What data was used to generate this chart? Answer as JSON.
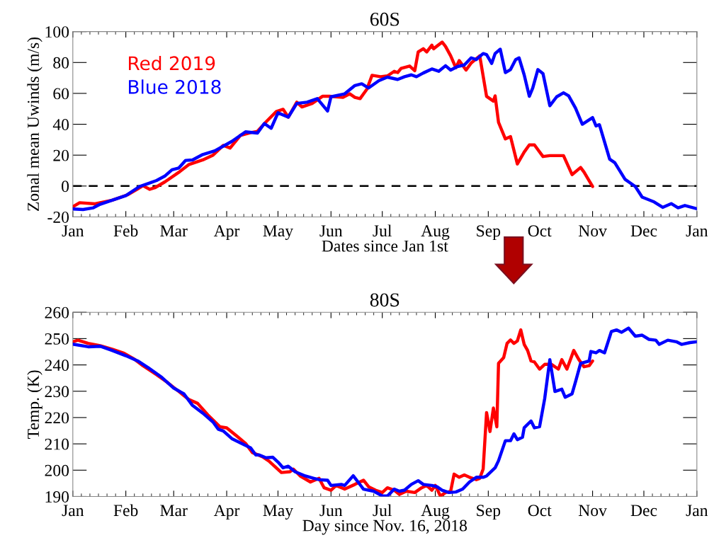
{
  "chart_data": [
    {
      "type": "line",
      "title": "60S",
      "xlabel": "Dates since Jan 1st",
      "ylabel": "Zonal mean Uwinds (m/s)",
      "xlim": [
        "2019-01-01",
        "2020-01-01"
      ],
      "ylim": [
        -20,
        100
      ],
      "xticks": [
        {
          "value": "2019-01-01",
          "label": "Jan"
        },
        {
          "value": "2019-02-01",
          "label": "Feb"
        },
        {
          "value": "2019-03-01",
          "label": "Mar"
        },
        {
          "value": "2019-04-01",
          "label": "Apr"
        },
        {
          "value": "2019-05-01",
          "label": "May"
        },
        {
          "value": "2019-06-01",
          "label": "Jun"
        },
        {
          "value": "2019-07-01",
          "label": "Jul"
        },
        {
          "value": "2019-08-01",
          "label": "Aug"
        },
        {
          "value": "2019-09-01",
          "label": "Sep"
        },
        {
          "value": "2019-10-01",
          "label": "Oct"
        },
        {
          "value": "2019-11-01",
          "label": "Nov"
        },
        {
          "value": "2019-12-01",
          "label": "Dec"
        },
        {
          "value": "2020-01-01",
          "label": "Jan"
        }
      ],
      "yticks": [
        -20,
        0,
        20,
        40,
        60,
        80,
        100
      ],
      "grid": false,
      "legend": "top left",
      "line_style": "solid",
      "ref_lines": [
        {
          "axis": "y",
          "value": 0,
          "color": "#000000",
          "line_style": "dashed"
        }
      ],
      "series": [
        {
          "name": "Red 2019",
          "color": "#ff0000",
          "x": [
            "2019-01-01",
            "2019-01-05",
            "2019-01-14",
            "2019-01-24",
            "2019-02-02",
            "2019-02-08",
            "2019-02-11",
            "2019-02-15",
            "2019-02-18",
            "2019-02-24",
            "2019-03-04",
            "2019-03-10",
            "2019-03-18",
            "2019-03-24",
            "2019-03-30",
            "2019-04-03",
            "2019-04-09",
            "2019-04-15",
            "2019-04-19",
            "2019-04-24",
            "2019-04-30",
            "2019-05-04",
            "2019-05-07",
            "2019-05-12",
            "2019-05-15",
            "2019-05-21",
            "2019-05-27",
            "2019-05-31",
            "2019-06-08",
            "2019-06-12",
            "2019-06-15",
            "2019-06-18",
            "2019-06-22",
            "2019-06-25",
            "2019-06-30",
            "2019-07-04",
            "2019-07-08",
            "2019-07-10",
            "2019-07-12",
            "2019-07-17",
            "2019-07-20",
            "2019-07-22",
            "2019-07-25",
            "2019-07-27",
            "2019-07-30",
            "2019-07-31",
            "2019-08-05",
            "2019-08-07",
            "2019-08-10",
            "2019-08-13",
            "2019-08-15",
            "2019-08-19",
            "2019-08-22",
            "2019-08-27",
            "2019-08-31",
            "2019-09-04",
            "2019-09-05",
            "2019-09-07",
            "2019-09-11",
            "2019-09-14",
            "2019-09-18",
            "2019-09-22",
            "2019-09-25",
            "2019-09-28",
            "2019-10-03",
            "2019-10-07",
            "2019-10-11",
            "2019-10-15",
            "2019-10-20",
            "2019-10-25",
            "2019-10-27",
            "2019-11-01"
          ],
          "values": [
            -13.4,
            -10.8,
            -11.5,
            -9.2,
            -5.7,
            -1.8,
            0.2,
            -2.1,
            -1.1,
            2.8,
            8.9,
            14.0,
            16.9,
            20.0,
            26.3,
            24.6,
            32.8,
            34.6,
            35.4,
            41.5,
            48.2,
            49.7,
            44.6,
            54.3,
            51.2,
            53.5,
            58.1,
            58.1,
            57.4,
            59.7,
            57.4,
            56.6,
            62.7,
            71.7,
            70.8,
            71.3,
            74.3,
            73.5,
            76.2,
            77.7,
            74.7,
            86.8,
            88.9,
            86.8,
            91.2,
            88.9,
            93.2,
            90.4,
            84.3,
            76.6,
            81.2,
            75.1,
            79.7,
            84.3,
            58.1,
            55.0,
            58.4,
            41.2,
            30.5,
            32.0,
            14.3,
            22.0,
            26.6,
            26.6,
            19.1,
            19.7,
            19.7,
            19.7,
            7.4,
            12.0,
            9.0,
            -0.3
          ]
        },
        {
          "name": "Blue 2018",
          "color": "#0000ff",
          "x": [
            "2019-01-01",
            "2019-01-07",
            "2019-01-13",
            "2019-01-17",
            "2019-01-24",
            "2019-02-01",
            "2019-02-09",
            "2019-02-14",
            "2019-02-19",
            "2019-02-24",
            "2019-02-28",
            "2019-03-04",
            "2019-03-08",
            "2019-03-12",
            "2019-03-18",
            "2019-03-25",
            "2019-03-30",
            "2019-04-04",
            "2019-04-12",
            "2019-04-19",
            "2019-04-23",
            "2019-04-27",
            "2019-05-01",
            "2019-05-07",
            "2019-05-12",
            "2019-05-18",
            "2019-05-24",
            "2019-05-30",
            "2019-06-01",
            "2019-06-09",
            "2019-06-15",
            "2019-06-19",
            "2019-06-23",
            "2019-06-29",
            "2019-07-04",
            "2019-07-10",
            "2019-07-14",
            "2019-07-18",
            "2019-07-21",
            "2019-07-25",
            "2019-07-30",
            "2019-08-03",
            "2019-08-07",
            "2019-08-10",
            "2019-08-14",
            "2019-08-18",
            "2019-08-22",
            "2019-08-25",
            "2019-08-29",
            "2019-08-31",
            "2019-09-03",
            "2019-09-05",
            "2019-09-08",
            "2019-09-11",
            "2019-09-14",
            "2019-09-17",
            "2019-09-19",
            "2019-09-22",
            "2019-09-25",
            "2019-09-27",
            "2019-09-30",
            "2019-10-03",
            "2019-10-07",
            "2019-10-11",
            "2019-10-15",
            "2019-10-18",
            "2019-10-22",
            "2019-10-26",
            "2019-11-01",
            "2019-11-03",
            "2019-11-05",
            "2019-11-11",
            "2019-11-14",
            "2019-11-20",
            "2019-11-26",
            "2019-11-30",
            "2019-12-07",
            "2019-12-12",
            "2019-12-17",
            "2019-12-21",
            "2019-12-25",
            "2020-01-01"
          ],
          "values": [
            -14.9,
            -15.2,
            -14.1,
            -11.8,
            -9.2,
            -6.2,
            -0.3,
            1.6,
            3.6,
            6.6,
            10.5,
            11.7,
            16.6,
            16.9,
            20.4,
            22.8,
            25.8,
            28.9,
            35.1,
            34.3,
            40.5,
            37.4,
            47.4,
            44.6,
            53.5,
            54.3,
            56.6,
            48.6,
            57.8,
            59.7,
            65.1,
            66.2,
            63.5,
            68.2,
            70.5,
            69.0,
            70.8,
            72.0,
            70.8,
            73.2,
            75.8,
            74.3,
            77.9,
            75.1,
            77.4,
            78.4,
            83.0,
            81.9,
            85.8,
            85.1,
            79.4,
            85.8,
            88.6,
            73.5,
            75.4,
            81.9,
            83.0,
            72.0,
            58.1,
            63.5,
            75.4,
            72.8,
            52.0,
            57.8,
            60.4,
            58.4,
            50.5,
            40.0,
            44.3,
            38.9,
            39.7,
            17.4,
            15.1,
            4.3,
            -0.3,
            -7.2,
            -10.3,
            -13.8,
            -11.4,
            -14.1,
            -12.6,
            -14.7
          ]
        }
      ]
    },
    {
      "type": "line",
      "title": "80S",
      "xlabel": "Day since Nov. 16, 2018",
      "ylabel": "Temp. (K)",
      "xlim": [
        "2019-01-01",
        "2020-01-01"
      ],
      "ylim": [
        190,
        260
      ],
      "xticks": [
        {
          "value": "2019-01-01",
          "label": "Jan"
        },
        {
          "value": "2019-02-01",
          "label": "Feb"
        },
        {
          "value": "2019-03-01",
          "label": "Mar"
        },
        {
          "value": "2019-04-01",
          "label": "Apr"
        },
        {
          "value": "2019-05-01",
          "label": "May"
        },
        {
          "value": "2019-06-01",
          "label": "Jun"
        },
        {
          "value": "2019-07-01",
          "label": "Jul"
        },
        {
          "value": "2019-08-01",
          "label": "Aug"
        },
        {
          "value": "2019-09-01",
          "label": "Sep"
        },
        {
          "value": "2019-10-01",
          "label": "Oct"
        },
        {
          "value": "2019-11-01",
          "label": "Nov"
        },
        {
          "value": "2019-12-01",
          "label": "Dec"
        },
        {
          "value": "2020-01-01",
          "label": "Jan"
        }
      ],
      "yticks": [
        190,
        200,
        210,
        220,
        230,
        240,
        250,
        260
      ],
      "grid": false,
      "line_style": "solid",
      "series": [
        {
          "color": "#ff0000",
          "x": [
            "2019-01-01",
            "2019-01-04",
            "2019-01-10",
            "2019-01-17",
            "2019-01-24",
            "2019-01-31",
            "2019-02-06",
            "2019-02-11",
            "2019-02-19",
            "2019-02-25",
            "2019-03-04",
            "2019-03-10",
            "2019-03-15",
            "2019-03-21",
            "2019-03-28",
            "2019-04-01",
            "2019-04-07",
            "2019-04-12",
            "2019-04-16",
            "2019-04-22",
            "2019-04-26",
            "2019-05-03",
            "2019-05-08",
            "2019-05-10",
            "2019-05-14",
            "2019-05-20",
            "2019-05-25",
            "2019-05-28",
            "2019-06-01",
            "2019-06-04",
            "2019-06-09",
            "2019-06-15",
            "2019-06-20",
            "2019-06-23",
            "2019-06-27",
            "2019-07-01",
            "2019-07-04",
            "2019-07-08",
            "2019-07-11",
            "2019-07-15",
            "2019-07-20",
            "2019-07-24",
            "2019-07-27",
            "2019-07-30",
            "2019-08-01",
            "2019-08-04",
            "2019-08-07",
            "2019-08-10",
            "2019-08-12",
            "2019-08-15",
            "2019-08-18",
            "2019-08-21",
            "2019-08-25",
            "2019-08-27",
            "2019-08-29",
            "2019-08-31",
            "2019-09-02",
            "2019-09-04",
            "2019-09-06",
            "2019-09-07",
            "2019-09-10",
            "2019-09-12",
            "2019-09-14",
            "2019-09-16",
            "2019-09-18",
            "2019-09-20",
            "2019-09-22",
            "2019-09-24",
            "2019-09-26",
            "2019-09-28",
            "2019-10-01",
            "2019-10-04",
            "2019-10-08",
            "2019-10-12",
            "2019-10-14",
            "2019-10-17",
            "2019-10-21",
            "2019-10-24",
            "2019-10-27",
            "2019-10-30",
            "2019-11-01"
          ],
          "values": [
            248.8,
            249.4,
            248.2,
            247.3,
            246.0,
            244.4,
            242.2,
            239.7,
            236.3,
            233.5,
            229.9,
            226.8,
            225.4,
            221.0,
            216.5,
            216.1,
            212.9,
            210.2,
            206.7,
            205.1,
            203.3,
            199.1,
            199.4,
            200.4,
            197.8,
            195.5,
            196.9,
            193.3,
            192.4,
            194.2,
            192.8,
            194.6,
            196.2,
            193.7,
            192.4,
            191.5,
            193.3,
            192.4,
            190.8,
            192.0,
            191.5,
            193.3,
            194.2,
            192.4,
            194.2,
            190.2,
            191.5,
            192.0,
            198.5,
            197.3,
            198.2,
            197.3,
            196.4,
            196.9,
            200.4,
            221.9,
            214.7,
            223.6,
            216.5,
            240.6,
            242.8,
            248.2,
            249.5,
            248.2,
            249.1,
            253.3,
            247.8,
            245.5,
            241.5,
            241.1,
            238.4,
            240.2,
            240.2,
            238.4,
            242.0,
            238.4,
            245.5,
            242.0,
            239.3,
            239.7,
            241.5
          ]
        },
        {
          "color": "#0000ff",
          "x": [
            "2019-01-01",
            "2019-01-10",
            "2019-01-17",
            "2019-01-24",
            "2019-02-01",
            "2019-02-08",
            "2019-02-14",
            "2019-02-22",
            "2019-03-01",
            "2019-03-07",
            "2019-03-12",
            "2019-03-18",
            "2019-03-24",
            "2019-03-27",
            "2019-03-30",
            "2019-04-04",
            "2019-04-12",
            "2019-04-15",
            "2019-04-18",
            "2019-04-20",
            "2019-04-24",
            "2019-04-28",
            "2019-05-01",
            "2019-05-04",
            "2019-05-07",
            "2019-05-11",
            "2019-05-17",
            "2019-05-22",
            "2019-05-25",
            "2019-05-30",
            "2019-06-01",
            "2019-06-07",
            "2019-06-09",
            "2019-06-14",
            "2019-06-20",
            "2019-06-26",
            "2019-07-01",
            "2019-07-04",
            "2019-07-08",
            "2019-07-11",
            "2019-07-14",
            "2019-07-18",
            "2019-07-22",
            "2019-07-25",
            "2019-07-30",
            "2019-08-02",
            "2019-08-05",
            "2019-08-09",
            "2019-08-13",
            "2019-08-17",
            "2019-08-21",
            "2019-08-25",
            "2019-08-29",
            "2019-08-31",
            "2019-09-05",
            "2019-09-07",
            "2019-09-11",
            "2019-09-14",
            "2019-09-16",
            "2019-09-18",
            "2019-09-21",
            "2019-09-22",
            "2019-09-26",
            "2019-09-28",
            "2019-10-01",
            "2019-10-04",
            "2019-10-07",
            "2019-10-10",
            "2019-10-14",
            "2019-10-16",
            "2019-10-20",
            "2019-10-22",
            "2019-10-25",
            "2019-10-30",
            "2019-10-31",
            "2019-11-03",
            "2019-11-05",
            "2019-11-08",
            "2019-11-12",
            "2019-11-15",
            "2019-11-18",
            "2019-11-22",
            "2019-11-26",
            "2019-11-30",
            "2019-12-04",
            "2019-12-08",
            "2019-12-10",
            "2019-12-15",
            "2019-12-20",
            "2019-12-23",
            "2019-12-28",
            "2020-01-01"
          ],
          "values": [
            247.9,
            246.9,
            247.1,
            245.5,
            243.5,
            241.5,
            239.0,
            235.3,
            231.2,
            229.0,
            224.6,
            221.7,
            218.3,
            215.6,
            214.9,
            212.0,
            209.4,
            208.5,
            205.8,
            205.8,
            204.7,
            204.9,
            203.1,
            200.9,
            201.5,
            199.4,
            197.8,
            196.9,
            196.4,
            196.2,
            194.2,
            194.6,
            194.2,
            197.9,
            192.8,
            192.0,
            190.2,
            190.2,
            192.8,
            192.0,
            192.4,
            194.6,
            196.0,
            194.6,
            194.2,
            193.7,
            192.4,
            191.5,
            191.7,
            192.8,
            195.5,
            197.3,
            197.3,
            197.8,
            200.9,
            203.6,
            211.2,
            211.2,
            213.8,
            211.6,
            212.5,
            216.1,
            218.7,
            216.1,
            216.5,
            227.2,
            242.0,
            229.9,
            230.8,
            227.7,
            229.0,
            233.5,
            240.6,
            241.5,
            245.1,
            244.6,
            245.5,
            244.6,
            252.7,
            253.3,
            252.4,
            254.0,
            250.9,
            251.3,
            249.7,
            249.4,
            247.8,
            249.4,
            248.8,
            247.8,
            248.5,
            248.8
          ]
        }
      ]
    }
  ]
}
